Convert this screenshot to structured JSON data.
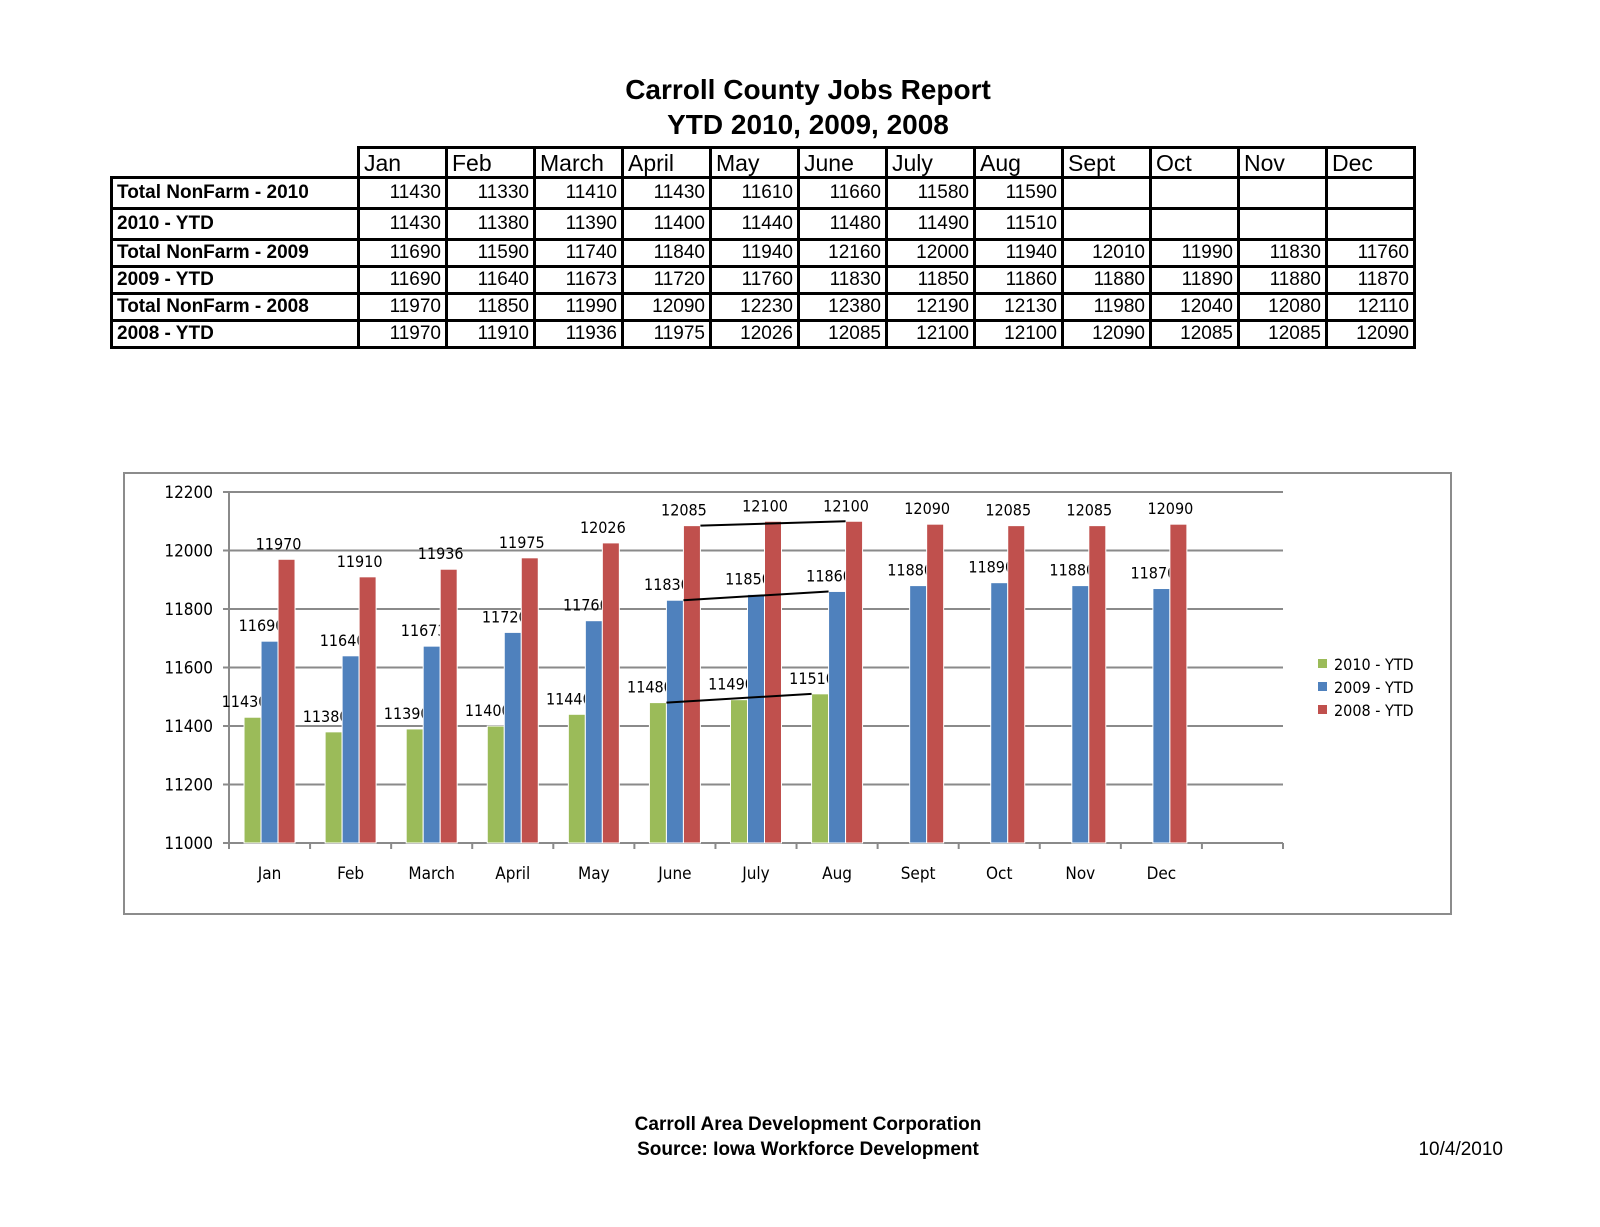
{
  "header": {
    "title": "Carroll County Jobs Report",
    "subtitle": "YTD 2010, 2009, 2008"
  },
  "table": {
    "columns": [
      "Jan",
      "Feb",
      "March",
      "April",
      "May",
      "June",
      "July",
      "Aug",
      "Sept",
      "Oct",
      "Nov",
      "Dec"
    ],
    "rows": [
      {
        "label": "Total NonFarm - 2010",
        "values": [
          "11430",
          "11330",
          "11410",
          "11430",
          "11610",
          "11660",
          "11580",
          "11590",
          "",
          "",
          "",
          ""
        ]
      },
      {
        "label": "2010 - YTD",
        "values": [
          "11430",
          "11380",
          "11390",
          "11400",
          "11440",
          "11480",
          "11490",
          "11510",
          "",
          "",
          "",
          ""
        ]
      },
      {
        "label": "Total NonFarm - 2009",
        "values": [
          "11690",
          "11590",
          "11740",
          "11840",
          "11940",
          "12160",
          "12000",
          "11940",
          "12010",
          "11990",
          "11830",
          "11760"
        ]
      },
      {
        "label": "2009 - YTD",
        "values": [
          "11690",
          "11640",
          "11673",
          "11720",
          "11760",
          "11830",
          "11850",
          "11860",
          "11880",
          "11890",
          "11880",
          "11870"
        ]
      },
      {
        "label": "Total NonFarm - 2008",
        "values": [
          "11970",
          "11850",
          "11990",
          "12090",
          "12230",
          "12380",
          "12190",
          "12130",
          "11980",
          "12040",
          "12080",
          "12110"
        ]
      },
      {
        "label": "2008 - YTD",
        "values": [
          "11970",
          "11910",
          "11936",
          "11975",
          "12026",
          "12085",
          "12100",
          "12100",
          "12090",
          "12085",
          "12085",
          "12090"
        ]
      }
    ]
  },
  "chart_data": {
    "type": "bar",
    "categories": [
      "Jan",
      "Feb",
      "March",
      "April",
      "May",
      "June",
      "July",
      "Aug",
      "Sept",
      "Oct",
      "Nov",
      "Dec"
    ],
    "series": [
      {
        "name": "2010 - YTD",
        "color": "#9BBB59",
        "values": [
          11430,
          11380,
          11390,
          11400,
          11440,
          11480,
          11490,
          11510,
          null,
          null,
          null,
          null
        ]
      },
      {
        "name": "2009 - YTD",
        "color": "#4F81BD",
        "values": [
          11690,
          11640,
          11673,
          11720,
          11760,
          11830,
          11850,
          11860,
          11880,
          11890,
          11880,
          11870
        ]
      },
      {
        "name": "2008 - YTD",
        "color": "#C0504D",
        "values": [
          11970,
          11910,
          11936,
          11975,
          12026,
          12085,
          12100,
          12100,
          12090,
          12085,
          12085,
          12090
        ]
      }
    ],
    "ylim": [
      11000,
      12200
    ],
    "yticks": [
      11000,
      11200,
      11400,
      11600,
      11800,
      12000,
      12200
    ],
    "grid": true,
    "data_labels": true,
    "legend": "right",
    "annotations": [
      {
        "type": "trend-line",
        "series": "2010 - YTD",
        "from": "June",
        "to": "Aug"
      },
      {
        "type": "trend-line",
        "series": "2009 - YTD",
        "from": "June",
        "to": "Aug"
      },
      {
        "type": "trend-line",
        "series": "2008 - YTD",
        "from": "June",
        "to": "Aug"
      }
    ]
  },
  "footer": {
    "line1": "Carroll Area Development Corporation",
    "line2": "Source: Iowa Workforce Development",
    "date": "10/4/2010"
  }
}
